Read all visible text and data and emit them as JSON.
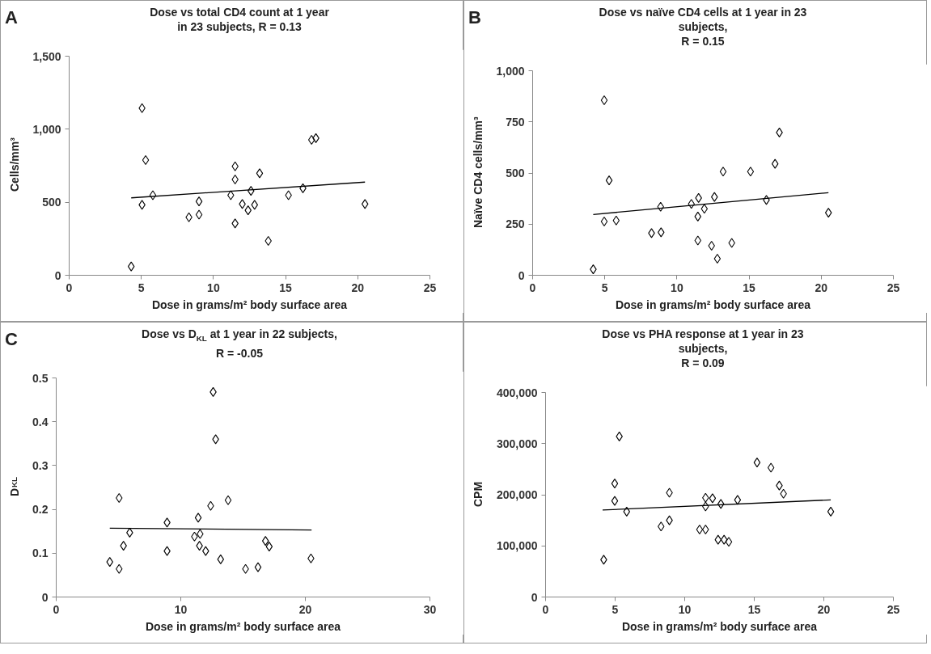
{
  "chart_data": [
    {
      "type": "scatter",
      "title": "Dose vs total CD4 count at 1 year\nin 23 subjects, R =  0.13",
      "xlabel": "Dose in grams/m² body surface area",
      "ylabel": "Cells/mm³",
      "annotations": [
        "A"
      ],
      "xlim": [
        0,
        25
      ],
      "xticks": [
        0,
        5,
        10,
        15,
        20,
        25
      ],
      "ylim": [
        0,
        1500
      ],
      "yticks": [
        0,
        500,
        {
          "value": 1000,
          "label": "1,000"
        },
        {
          "value": 1500,
          "label": "1,500"
        }
      ],
      "series": [
        {
          "marker": "diamond",
          "color": "#000000",
          "x": [
            4.3,
            5.05,
            5.3,
            5.05,
            5.8,
            8.3,
            9.0,
            9.0,
            11.2,
            11.5,
            11.5,
            11.5,
            12.0,
            12.6,
            12.4,
            12.85,
            13.2,
            13.8,
            15.2,
            16.2,
            16.8,
            17.1,
            20.5
          ],
          "values": [
            60,
            1144,
            789,
            482,
            548,
            397,
            506,
            415,
            548,
            746,
            656,
            355,
            488,
            578,
            445,
            482,
            698,
            235,
            548,
            596,
            927,
            939,
            488
          ]
        },
        {
          "type": "line",
          "color": "#000000",
          "x": [
            4.3,
            20.5
          ],
          "values": [
            530,
            638
          ]
        }
      ]
    },
    {
      "type": "scatter",
      "title": "Dose vs naïve CD4 cells at 1 year in 23\nsubjects,\nR = 0.15",
      "xlabel": "Dose in grams/m² body surface area",
      "ylabel": "Naïve CD4 cells/mm³",
      "annotations": [
        "B"
      ],
      "xlim": [
        0,
        25
      ],
      "xticks": [
        0,
        5,
        10,
        15,
        20,
        25
      ],
      "ylim": [
        0,
        1000
      ],
      "yticks": [
        0,
        250,
        500,
        750,
        {
          "value": 1000,
          "label": "1,000"
        }
      ],
      "series": [
        {
          "marker": "diamond",
          "color": "#000000",
          "x": [
            4.2,
            4.96,
            5.3,
            4.96,
            5.79,
            8.24,
            8.9,
            8.87,
            11.0,
            11.5,
            11.45,
            11.9,
            11.45,
            12.4,
            12.6,
            12.8,
            13.2,
            13.8,
            15.1,
            16.2,
            16.8,
            17.1,
            20.5
          ],
          "values": [
            29,
            856,
            464,
            263,
            268,
            206,
            210,
            335,
            349,
            378,
            287,
            325,
            170,
            144,
            383,
            81,
            507,
            158,
            507,
            368,
            545,
            698,
            306
          ]
        },
        {
          "type": "line",
          "color": "#000000",
          "x": [
            4.2,
            20.5
          ],
          "values": [
            297,
            404
          ]
        }
      ]
    },
    {
      "type": "scatter",
      "title": "Dose vs D$_{KL}$ at 1 year in 22 subjects,\nR = -0.05",
      "xlabel": "Dose in grams/m² body surface area",
      "ylabel": "D$_{KL}$",
      "annotations": [
        "C"
      ],
      "xlim": [
        0,
        30
      ],
      "xticks": [
        0,
        10,
        20,
        30
      ],
      "ylim": [
        0,
        0.5
      ],
      "yticks": [
        0,
        0.1,
        0.2,
        0.3,
        0.4,
        0.5
      ],
      "series": [
        {
          "marker": "diamond",
          "color": "#000000",
          "x": [
            4.3,
            5.05,
            5.05,
            5.4,
            5.9,
            8.9,
            8.9,
            11.1,
            11.4,
            11.5,
            11.55,
            12.0,
            12.4,
            12.6,
            12.8,
            13.2,
            13.8,
            15.2,
            16.2,
            16.8,
            17.1,
            20.45
          ],
          "values": [
            0.08,
            0.064,
            0.226,
            0.117,
            0.147,
            0.17,
            0.105,
            0.138,
            0.181,
            0.117,
            0.144,
            0.105,
            0.208,
            0.468,
            0.36,
            0.086,
            0.221,
            0.064,
            0.068,
            0.128,
            0.115,
            0.088
          ]
        },
        {
          "type": "line",
          "color": "#000000",
          "x": [
            4.3,
            20.5
          ],
          "values": [
            0.157,
            0.153
          ]
        }
      ]
    },
    {
      "type": "scatter",
      "title": "Dose vs PHA response at 1 year in 23\nsubjects,\nR = 0.09",
      "xlabel": "Dose in grams/m² body surface area",
      "ylabel": "CPM",
      "xlim": [
        0,
        25
      ],
      "xticks": [
        0,
        5,
        10,
        15,
        20,
        25
      ],
      "ylim": [
        0,
        400000
      ],
      "yticks": [
        0,
        {
          "value": 100000,
          "label": "100,000"
        },
        {
          "value": 200000,
          "label": "200,000"
        },
        {
          "value": 300000,
          "label": "300,000"
        },
        {
          "value": 400000,
          "label": "400,000"
        }
      ],
      "series": [
        {
          "marker": "diamond",
          "color": "#000000",
          "x": [
            4.18,
            5.3,
            4.97,
            4.97,
            5.83,
            8.3,
            8.9,
            8.9,
            11.07,
            11.5,
            11.5,
            11.5,
            12.0,
            12.4,
            12.6,
            12.83,
            13.17,
            13.8,
            15.2,
            16.2,
            16.8,
            17.1,
            20.5
          ],
          "values": [
            73000,
            314000,
            222000,
            188000,
            167000,
            138000,
            150000,
            204000,
            132000,
            132000,
            194000,
            177000,
            193000,
            112000,
            182000,
            112000,
            108000,
            190000,
            263000,
            253000,
            218000,
            202000,
            167000
          ]
        },
        {
          "type": "line",
          "color": "#000000",
          "x": [
            4.1,
            20.5
          ],
          "values": [
            170000,
            190000
          ]
        }
      ]
    }
  ]
}
